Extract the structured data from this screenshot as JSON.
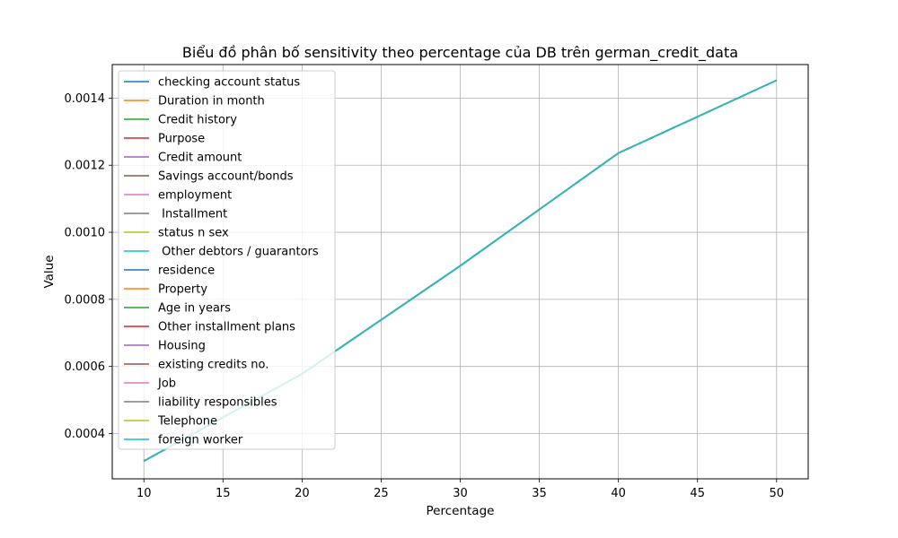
{
  "chart_data": {
    "type": "line",
    "title": "Biểu đồ phân bố sensitivity theo percentage của DB trên german_credit_data",
    "xlabel": "Percentage",
    "ylabel": "Value",
    "xlim": [
      8.0,
      52.0
    ],
    "ylim": [
      0.000265,
      0.0015
    ],
    "x_ticks": [
      10,
      15,
      20,
      25,
      30,
      35,
      40,
      45,
      50
    ],
    "x_tick_labels": [
      "10",
      "15",
      "20",
      "25",
      "30",
      "35",
      "40",
      "45",
      "50"
    ],
    "y_ticks": [
      0.0004,
      0.0006,
      0.0008,
      0.001,
      0.0012,
      0.0014
    ],
    "y_tick_labels": [
      "0.0004",
      "0.0006",
      "0.0008",
      "0.0010",
      "0.0012",
      "0.0014"
    ],
    "grid": true,
    "legend_position": "upper-left",
    "x": [
      10,
      20,
      30,
      40,
      50
    ],
    "series": [
      {
        "name": "checking account status",
        "color": "#1f77b4",
        "values": [
          0.000318,
          0.000578,
          0.0009,
          0.001236,
          0.001453
        ]
      },
      {
        "name": "Duration in month",
        "color": "#ff7f0e",
        "values": [
          0.000318,
          0.000578,
          0.0009,
          0.001236,
          0.001453
        ]
      },
      {
        "name": "Credit history",
        "color": "#2ca02c",
        "values": [
          0.000318,
          0.000578,
          0.0009,
          0.001236,
          0.001453
        ]
      },
      {
        "name": "Purpose",
        "color": "#d62728",
        "values": [
          0.000318,
          0.000578,
          0.0009,
          0.001236,
          0.001453
        ]
      },
      {
        "name": "Credit amount",
        "color": "#9467bd",
        "values": [
          0.000318,
          0.000578,
          0.0009,
          0.001236,
          0.001453
        ]
      },
      {
        "name": "Savings account/bonds",
        "color": "#8c564b",
        "values": [
          0.000318,
          0.000578,
          0.0009,
          0.001236,
          0.001453
        ]
      },
      {
        "name": "employment",
        "color": "#e377c2",
        "values": [
          0.000318,
          0.000578,
          0.0009,
          0.001236,
          0.001453
        ]
      },
      {
        "name": " Installment",
        "color": "#7f7f7f",
        "values": [
          0.000318,
          0.000578,
          0.0009,
          0.001236,
          0.001453
        ]
      },
      {
        "name": "status n sex",
        "color": "#bcbd22",
        "values": [
          0.000318,
          0.000578,
          0.0009,
          0.001236,
          0.001453
        ]
      },
      {
        "name": " Other debtors / guarantors",
        "color": "#17becf",
        "values": [
          0.000318,
          0.000578,
          0.0009,
          0.001236,
          0.001453
        ]
      },
      {
        "name": "residence",
        "color": "#1f77b4",
        "values": [
          0.000318,
          0.000578,
          0.0009,
          0.001236,
          0.001453
        ]
      },
      {
        "name": "Property",
        "color": "#ff7f0e",
        "values": [
          0.000318,
          0.000578,
          0.0009,
          0.001236,
          0.001453
        ]
      },
      {
        "name": "Age in years",
        "color": "#2ca02c",
        "values": [
          0.000318,
          0.000578,
          0.0009,
          0.001236,
          0.001453
        ]
      },
      {
        "name": "Other installment plans",
        "color": "#d62728",
        "values": [
          0.000318,
          0.000578,
          0.0009,
          0.001236,
          0.001453
        ]
      },
      {
        "name": "Housing",
        "color": "#9467bd",
        "values": [
          0.000318,
          0.000578,
          0.0009,
          0.001236,
          0.001453
        ]
      },
      {
        "name": "existing credits no.",
        "color": "#8c564b",
        "values": [
          0.000318,
          0.000578,
          0.0009,
          0.001236,
          0.001453
        ]
      },
      {
        "name": "Job",
        "color": "#e377c2",
        "values": [
          0.000318,
          0.000578,
          0.0009,
          0.001236,
          0.001453
        ]
      },
      {
        "name": "liability responsibles",
        "color": "#7f7f7f",
        "values": [
          0.000318,
          0.000578,
          0.0009,
          0.001236,
          0.001453
        ]
      },
      {
        "name": "Telephone",
        "color": "#bcbd22",
        "values": [
          0.000318,
          0.000578,
          0.0009,
          0.001236,
          0.001453
        ]
      },
      {
        "name": "foreign worker",
        "color": "#17becf",
        "values": [
          0.000318,
          0.000578,
          0.0009,
          0.001236,
          0.001453
        ]
      }
    ]
  }
}
